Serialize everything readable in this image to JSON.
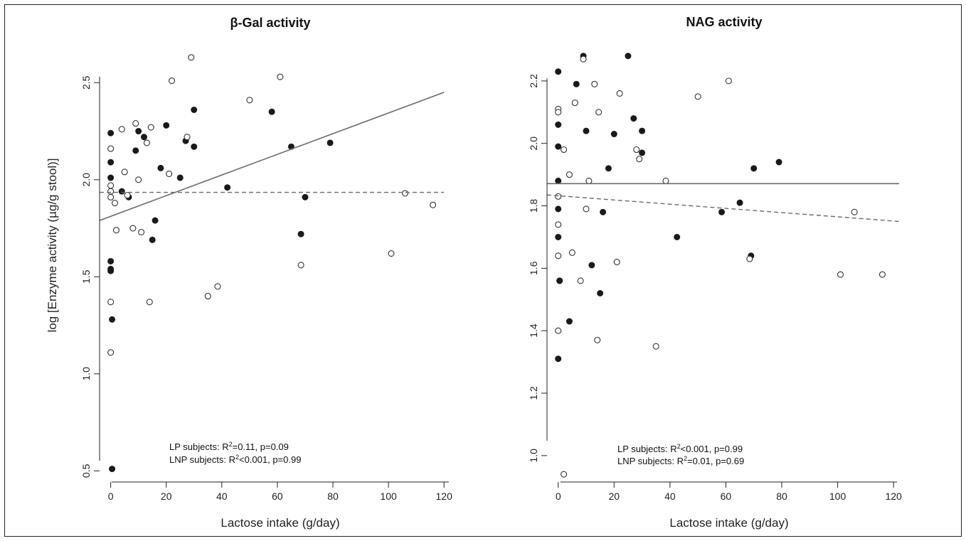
{
  "ylabel": "log [Enzyme activity (µg/g stool)]",
  "chart_data": [
    {
      "type": "scatter",
      "title": "β-Gal activity",
      "xlabel": "Lactose intake (g/day)",
      "ylabel": "log [Enzyme activity (µg/g stool)]",
      "xlim": [
        -4,
        122
      ],
      "ylim": [
        0.45,
        2.75
      ],
      "xticks": [
        0,
        20,
        40,
        60,
        80,
        100,
        120
      ],
      "yticks": [
        0.5,
        1.0,
        1.5,
        2.0,
        2.5
      ],
      "ytick_labels": [
        "0.5",
        "1.0",
        "1.5",
        "2.0",
        "2.5"
      ],
      "series": [
        {
          "style": "filled",
          "x": [
            0,
            0,
            0,
            0,
            0,
            0,
            0.5,
            0.5,
            4,
            6.5,
            9,
            10,
            12,
            15,
            16,
            18,
            20,
            25,
            27,
            30,
            30,
            42,
            58,
            65,
            68.5,
            70,
            79
          ],
          "y": [
            2.24,
            2.09,
            2.01,
            1.58,
            1.54,
            1.53,
            1.28,
            0.51,
            1.94,
            1.91,
            2.15,
            2.25,
            2.22,
            1.69,
            1.79,
            2.06,
            2.28,
            2.01,
            2.2,
            2.36,
            2.17,
            1.96,
            2.35,
            2.17,
            1.72,
            1.91,
            2.19
          ]
        },
        {
          "style": "open",
          "x": [
            0,
            0,
            0,
            0,
            0,
            0,
            1.5,
            2,
            4,
            5,
            6,
            8,
            9,
            10,
            11,
            13,
            14,
            14.5,
            21,
            22,
            27.5,
            29,
            35,
            38.5,
            50,
            61,
            68.5,
            101,
            106,
            116
          ],
          "y": [
            2.16,
            1.97,
            1.94,
            1.91,
            1.37,
            1.11,
            1.88,
            1.74,
            2.26,
            2.04,
            1.92,
            1.75,
            2.29,
            2.0,
            1.73,
            2.19,
            1.37,
            2.27,
            2.03,
            2.51,
            2.22,
            2.63,
            1.4,
            1.45,
            2.41,
            2.53,
            1.56,
            1.62,
            1.93,
            1.87
          ]
        }
      ],
      "fits": [
        {
          "style": "solid",
          "x": [
            -4,
            120
          ],
          "y": [
            1.79,
            2.45
          ]
        },
        {
          "style": "dashed",
          "x": [
            -4,
            120
          ],
          "y": [
            1.935,
            1.935
          ]
        }
      ],
      "annotations": [
        {
          "pre": "LP subjects: R",
          "sup": "2",
          "post": "=0.11, p=0.09"
        },
        {
          "pre": "LNP subjects: R",
          "sup": "2",
          "post": "<0.001, p=0.99"
        }
      ]
    },
    {
      "type": "scatter",
      "title": "NAG activity",
      "xlabel": "Lactose intake (g/day)",
      "xlim": [
        -4,
        122
      ],
      "ylim": [
        0.92,
        2.35
      ],
      "xticks": [
        0,
        20,
        40,
        60,
        80,
        100,
        120
      ],
      "yticks": [
        1.0,
        1.2,
        1.4,
        1.6,
        1.8,
        2.0,
        2.2
      ],
      "ytick_labels": [
        "1.0",
        "1.2",
        "1.4",
        "1.6",
        "1.8",
        "2.0",
        "2.2"
      ],
      "series": [
        {
          "style": "filled",
          "x": [
            0,
            0,
            0,
            0,
            0,
            0,
            0.5,
            0.5,
            0,
            4,
            6.5,
            9,
            10,
            12,
            15,
            16,
            18,
            20,
            25,
            27,
            30,
            30,
            42.5,
            58.5,
            65,
            69,
            70,
            79
          ],
          "y": [
            2.23,
            2.06,
            1.99,
            1.88,
            1.79,
            1.7,
            1.56,
            1.56,
            1.31,
            1.43,
            2.19,
            2.28,
            2.04,
            1.61,
            1.52,
            1.78,
            1.92,
            2.03,
            2.28,
            2.08,
            2.04,
            1.97,
            1.7,
            1.78,
            1.81,
            1.64,
            1.92,
            1.94
          ]
        },
        {
          "style": "open",
          "x": [
            0,
            0,
            0,
            0,
            0,
            0,
            2,
            4,
            5,
            6,
            8,
            9,
            10,
            11,
            13,
            14,
            14.5,
            21,
            22,
            28,
            29,
            35,
            38.5,
            50,
            61,
            68.5,
            101,
            106,
            116,
            2
          ],
          "y": [
            2.11,
            2.1,
            1.83,
            1.74,
            1.64,
            1.4,
            1.98,
            1.9,
            1.65,
            2.13,
            1.56,
            2.27,
            1.79,
            1.88,
            2.19,
            1.37,
            2.1,
            1.62,
            2.16,
            1.98,
            1.95,
            1.35,
            1.88,
            2.15,
            2.2,
            1.63,
            1.58,
            1.78,
            1.58,
            0.94
          ]
        }
      ],
      "fits": [
        {
          "style": "solid",
          "x": [
            -4,
            122
          ],
          "y": [
            1.871,
            1.871
          ]
        },
        {
          "style": "dashed",
          "x": [
            -4,
            122
          ],
          "y": [
            1.835,
            1.75
          ]
        }
      ],
      "annotations": [
        {
          "pre": "LP subjects: R",
          "sup": "2",
          "post": "<0.001, p=0.99"
        },
        {
          "pre": "LNP subjects: R",
          "sup": "2",
          "post": "=0.01, p=0.69"
        }
      ]
    }
  ]
}
